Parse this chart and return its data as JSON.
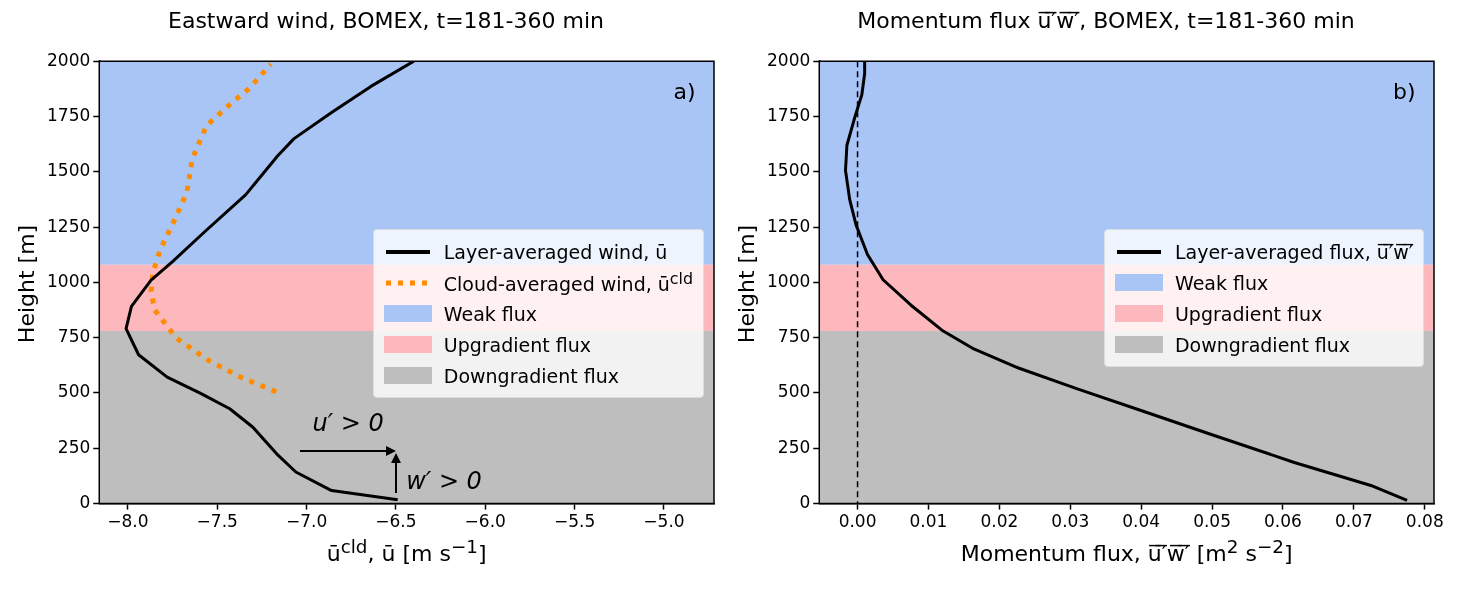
{
  "chart_data": [
    {
      "type": "line",
      "title": "Eastward wind, BOMEX, t=181-360 min",
      "xlabel": "ū$^{cld}$, ū [m s$^{−1}$]",
      "ylabel": "Height [m]",
      "marker": "none",
      "legend": "right",
      "grid": false,
      "series": [
        {
          "name": "Layer-averaged wind, ū",
          "color": "#000000",
          "line_style": "solid",
          "x": [
            -6.49,
            -6.86,
            -7.06,
            -7.16,
            -7.3,
            -7.43,
            -7.59,
            -7.78,
            -7.94,
            -8.01,
            -7.98,
            -7.87,
            -7.75,
            -7.57,
            -7.34,
            -7.16,
            -7.07,
            -6.86,
            -6.64,
            -6.4
          ],
          "values": [
            17,
            59,
            143,
            219,
            345,
            429,
            497,
            572,
            673,
            791,
            892,
            1010,
            1094,
            1229,
            1397,
            1574,
            1650,
            1768,
            1886,
            2000
          ]
        },
        {
          "name": "Cloud-averaged wind, ū$^{cld}$",
          "color": "#ff8c00",
          "line_style": "dotted",
          "x": [
            -7.17,
            -7.37,
            -7.55,
            -7.73,
            -7.85,
            -7.87,
            -7.86,
            -7.82,
            -7.75,
            -7.67,
            -7.64,
            -7.56,
            -7.41,
            -7.32,
            -7.2
          ],
          "values": [
            505,
            572,
            648,
            749,
            875,
            960,
            1044,
            1145,
            1263,
            1406,
            1557,
            1709,
            1818,
            1877,
            1987
          ]
        }
      ],
      "bands": [
        {
          "axis": "y",
          "from": 1080,
          "to": 2000,
          "label": "Weak flux",
          "color": "#a9c5f5"
        },
        {
          "axis": "y",
          "from": 780,
          "to": 1080,
          "label": "Upgradient flux",
          "color": "#fdb8bd"
        },
        {
          "axis": "y",
          "from": 0,
          "to": 780,
          "label": "Downgradient flux",
          "color": "#bebebe"
        }
      ],
      "xlim": [
        -8.16,
        -4.72
      ],
      "xticks": [
        {
          "value": -8,
          "label": "−8.0"
        },
        {
          "value": -7.5,
          "label": "−7.5"
        },
        {
          "value": -7,
          "label": "−7.0"
        },
        {
          "value": -6.5,
          "label": "−6.5"
        },
        {
          "value": -6,
          "label": "−6.0"
        },
        {
          "value": -5.5,
          "label": "−5.5"
        },
        {
          "value": -5,
          "label": "−5.0"
        }
      ],
      "ylim": [
        0,
        2000
      ],
      "yticks": [
        0,
        250,
        500,
        750,
        1000,
        1250,
        1500,
        1750,
        2000
      ],
      "annotations": [
        "a)",
        "u′ > 0",
        "w′ > 0"
      ]
    },
    {
      "type": "line",
      "title": "Momentum flux u̅′̅w̅′̅, BOMEX, t=181-360 min",
      "xlabel": "Momentum flux, u̅′̅w̅′̅ [m$^{2}$ s$^{−2}$]",
      "ylabel": "Height [m]",
      "marker": "none",
      "legend": "right",
      "grid": false,
      "series": [
        {
          "name": "Layer-averaged flux, u̅′̅w̅′̅",
          "color": "#000000",
          "line_style": "solid",
          "x": [
            0.0775,
            0.0724,
            0.0616,
            0.0501,
            0.0406,
            0.031,
            0.0227,
            0.0164,
            0.0119,
            0.0075,
            0.0036,
            0.0014,
            -0.0002,
            -0.0011,
            -0.0017,
            -0.0015,
            -0.0005,
            0.0006,
            0.001,
            0.001
          ],
          "values": [
            15,
            82,
            186,
            310,
            414,
            519,
            613,
            699,
            784,
            898,
            1012,
            1126,
            1259,
            1373,
            1506,
            1620,
            1734,
            1848,
            1943,
            2000
          ]
        }
      ],
      "bands": [
        {
          "axis": "y",
          "from": 1080,
          "to": 2000,
          "label": "Weak flux",
          "color": "#a9c5f5"
        },
        {
          "axis": "y",
          "from": 780,
          "to": 1080,
          "label": "Upgradient flux",
          "color": "#fdb8bd"
        },
        {
          "axis": "y",
          "from": 0,
          "to": 780,
          "label": "Downgradient flux",
          "color": "#bebebe"
        }
      ],
      "ref_lines": [
        {
          "axis": "x",
          "value": 0,
          "color": "#000000",
          "line_style": "dashed"
        }
      ],
      "xlim": [
        -0.0054,
        0.0813
      ],
      "xticks": [
        {
          "value": 0,
          "label": "0.00"
        },
        {
          "value": 0.01,
          "label": "0.01"
        },
        {
          "value": 0.02,
          "label": "0.02"
        },
        {
          "value": 0.03,
          "label": "0.03"
        },
        {
          "value": 0.04,
          "label": "0.04"
        },
        {
          "value": 0.05,
          "label": "0.05"
        },
        {
          "value": 0.06,
          "label": "0.06"
        },
        {
          "value": 0.07,
          "label": "0.07"
        },
        {
          "value": 0.08,
          "label": "0.08"
        }
      ],
      "ylim": [
        0,
        2000
      ],
      "yticks": [
        0,
        250,
        500,
        750,
        1000,
        1250,
        1500,
        1750,
        2000
      ],
      "annotations": [
        "b)"
      ]
    }
  ]
}
